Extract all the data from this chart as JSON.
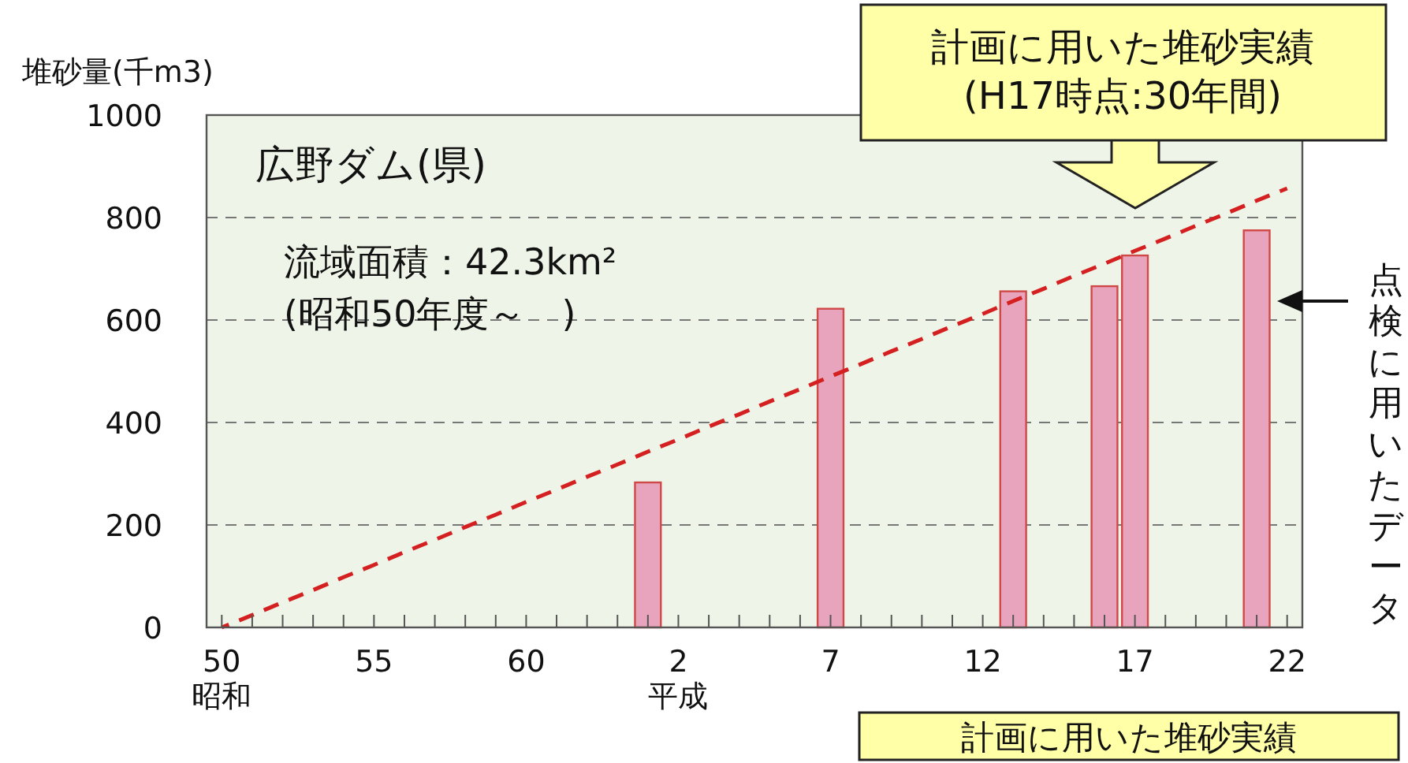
{
  "chart_data": {
    "type": "bar",
    "ylabel": "堆砂量(千m3)",
    "categories": [
      "50\n昭和",
      null,
      null,
      null,
      null,
      "55",
      null,
      null,
      null,
      null,
      "60",
      null,
      null,
      null,
      null,
      "2\n平成",
      null,
      null,
      null,
      null,
      "7",
      null,
      null,
      null,
      null,
      "12",
      null,
      null,
      null,
      null,
      "17",
      null,
      null,
      null,
      null,
      "22"
    ],
    "series": [
      {
        "color": "#e8a4bc",
        "values": [
          null,
          null,
          null,
          null,
          null,
          null,
          null,
          null,
          null,
          null,
          null,
          null,
          null,
          null,
          283,
          null,
          null,
          null,
          null,
          null,
          622,
          null,
          null,
          null,
          null,
          null,
          656,
          null,
          null,
          666,
          726,
          null,
          null,
          null,
          775,
          null
        ]
      },
      {
        "type": "line",
        "color": "#d42020",
        "line_style": "dashed",
        "values": [
          0,
          24,
          49,
          73,
          98,
          122,
          147,
          171,
          196,
          220,
          245,
          269,
          294,
          318,
          343,
          367,
          392,
          416,
          441,
          465,
          490,
          514,
          539,
          563,
          588,
          612,
          637,
          661,
          686,
          710,
          735,
          759,
          784,
          808,
          833,
          857
        ]
      }
    ],
    "ylim": [
      0,
      1000
    ],
    "yticks": [
      0,
      200,
      400,
      600,
      800,
      1000
    ],
    "grid": "y",
    "annotations": [
      "広野ダム(県)",
      "流域面積：42.3km²",
      "(昭和50年度～　)",
      "計画に用いた堆砂実績\n(H17時点:30年間)",
      "点検に用いたデータ",
      "計画に用いた堆砂実績"
    ]
  }
}
